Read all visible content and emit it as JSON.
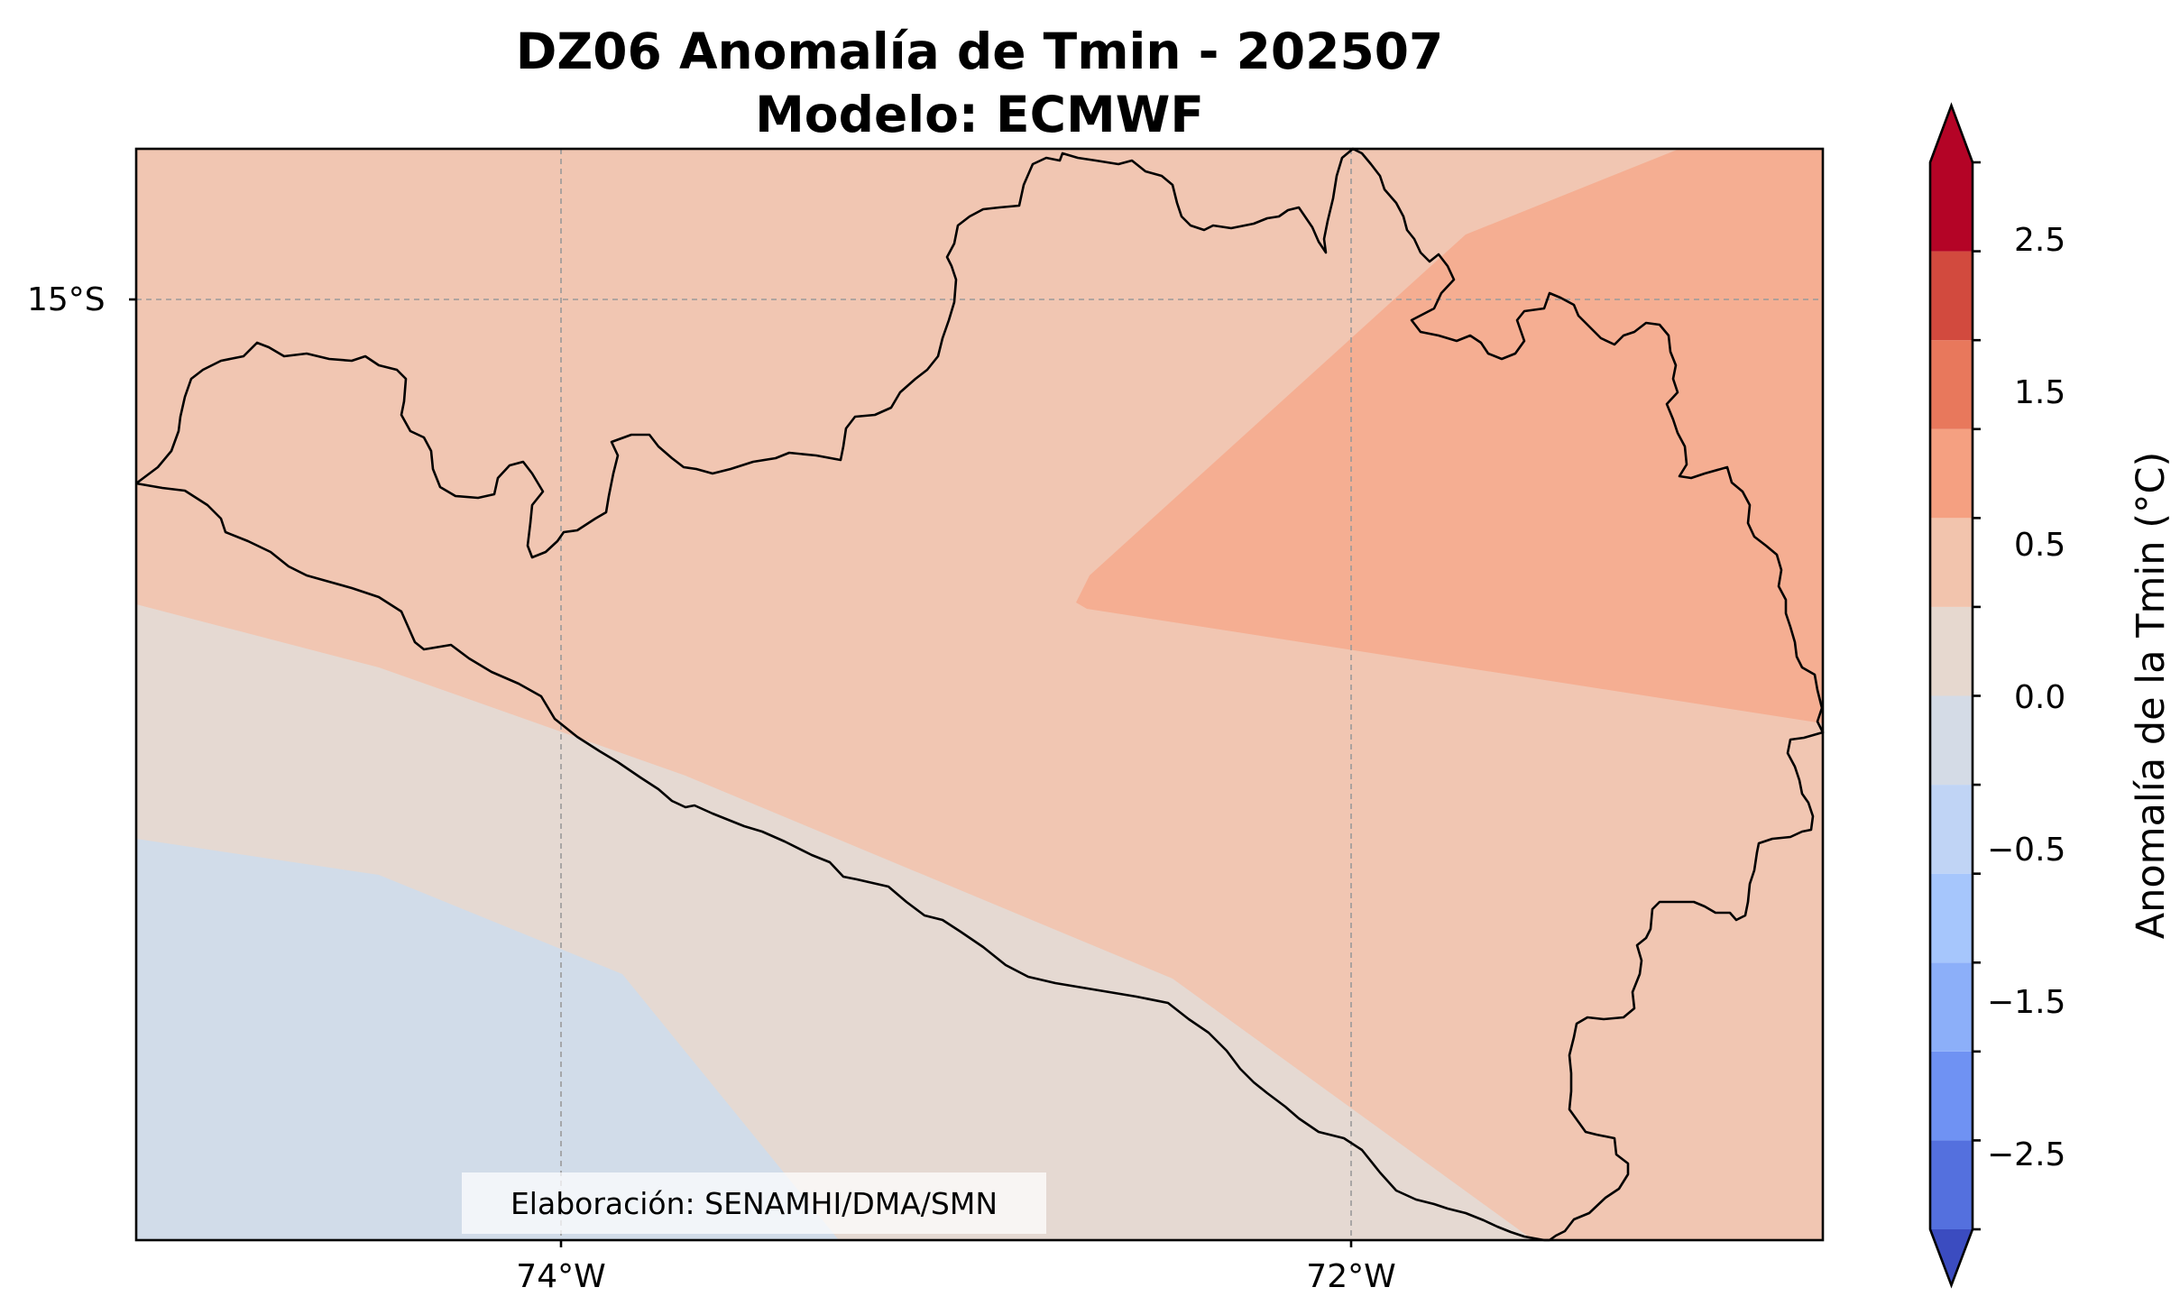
{
  "title": {
    "line1": "DZ06 Anomalía de Tmin - 202507",
    "line2": "Modelo: ECMWF"
  },
  "map": {
    "lat_labels": [
      "15°S"
    ],
    "lon_labels": [
      "74°W",
      "72°W"
    ],
    "credit": "Elaboración: SENAMHI/DMA/SMN",
    "gridlines": true,
    "region_fills": {
      "offshore_negative": "#d1dce9",
      "near_zero": "#e5d9d2",
      "weak_positive": "#f1c6b2",
      "moderate_positive": "#f5ae92"
    }
  },
  "colorbar": {
    "label": "Anomalía de la Tmin (°C)",
    "tick_labels": [
      "2.5",
      "1.5",
      "0.5",
      "0.0",
      "−0.5",
      "−1.5",
      "−2.5"
    ],
    "levels": [
      -3.0,
      -2.5,
      -2.0,
      -1.5,
      -1.0,
      -0.5,
      0.0,
      0.5,
      1.0,
      1.5,
      2.0,
      2.5,
      3.0
    ],
    "colors": [
      "#3b4cc0",
      "#5470de",
      "#6f92f3",
      "#8caff9",
      "#a6c6fc",
      "#c0d4f5",
      "#d4dbe6",
      "#e6d8cf",
      "#f2c4ad",
      "#f5a081",
      "#e8785c",
      "#d24a3e",
      "#b40426"
    ],
    "extend": "both"
  }
}
